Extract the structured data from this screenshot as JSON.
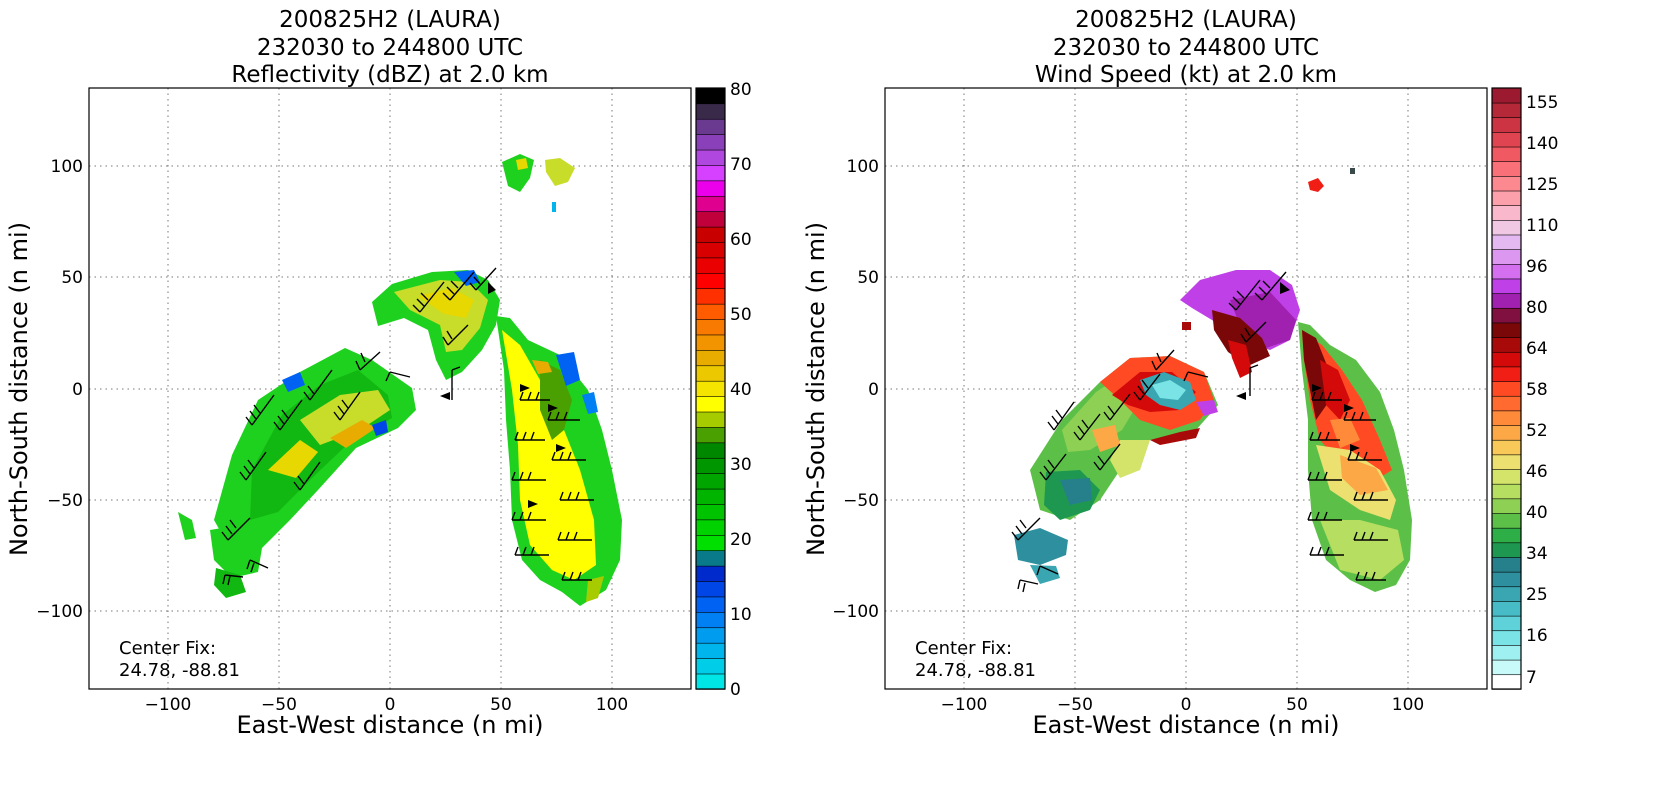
{
  "chart_data": [
    {
      "type": "heatmap",
      "title": [
        "200825H2 (LAURA)",
        "232030 to 244800 UTC",
        "Reflectivity (dBZ) at 2.0 km"
      ],
      "xlabel": "East-West distance (n mi)",
      "ylabel": "North-South distance (n mi)",
      "xlim": [
        -135,
        135
      ],
      "ylim": [
        -135,
        135
      ],
      "xticks": [
        -100,
        -50,
        0,
        50,
        100
      ],
      "yticks": [
        -100,
        -50,
        0,
        50,
        100
      ],
      "xtick_labels": [
        "−100",
        "−50",
        "0",
        "50",
        "100"
      ],
      "ytick_labels": [
        "−100",
        "−50",
        "0",
        "50",
        "100"
      ],
      "grid": true,
      "annotation": [
        "Center Fix:",
        "24.78, -88.81"
      ],
      "colorbar": {
        "range": [
          0,
          80
        ],
        "ticks": [
          "0",
          "10",
          "20",
          "30",
          "40",
          "50",
          "60",
          "70",
          "80"
        ],
        "colors": [
          "#00e5e5",
          "#00cde8",
          "#00b4ec",
          "#009cef",
          "#0080f2",
          "#0062f2",
          "#0045e6",
          "#002acc",
          "#087a8a",
          "#00e000",
          "#00d200",
          "#00c300",
          "#00b400",
          "#00a500",
          "#009600",
          "#008700",
          "#4aa000",
          "#a6cc00",
          "#ffff00",
          "#f4e400",
          "#ebc800",
          "#e8ac00",
          "#f29400",
          "#f87a00",
          "#ff5c00",
          "#ff3000",
          "#ff0000",
          "#ea0000",
          "#d80000",
          "#c80000",
          "#c0003a",
          "#e00090",
          "#ec00ec",
          "#d640ff",
          "#b048e0",
          "#8a40b8",
          "#6a3a90",
          "#3a2a4a",
          "#000000"
        ]
      }
    },
    {
      "type": "heatmap",
      "title": [
        "200825H2 (LAURA)",
        "232030 to 244800 UTC",
        "Wind Speed (kt) at 2.0 km"
      ],
      "xlabel": "East-West distance (n mi)",
      "ylabel": "North-South distance (n mi)",
      "xlim": [
        -135,
        135
      ],
      "ylim": [
        -135,
        135
      ],
      "xticks": [
        -100,
        -50,
        0,
        50,
        100
      ],
      "yticks": [
        -100,
        -50,
        0,
        50,
        100
      ],
      "xtick_labels": [
        "−100",
        "−50",
        "0",
        "50",
        "100"
      ],
      "ytick_labels": [
        "−100",
        "−50",
        "0",
        "50",
        "100"
      ],
      "grid": true,
      "annotation": [
        "Center Fix:",
        "24.78, -88.81"
      ],
      "colorbar": {
        "ticks": [
          "7",
          "16",
          "25",
          "34",
          "40",
          "46",
          "52",
          "58",
          "64",
          "80",
          "96",
          "110",
          "125",
          "140",
          "155"
        ],
        "colors": [
          "#ffffff",
          "#c8fafa",
          "#9ff0f0",
          "#7ae3e6",
          "#5ed2d8",
          "#48bcc6",
          "#3aa6b2",
          "#2e909e",
          "#26808c",
          "#1e9850",
          "#2eae46",
          "#5cc048",
          "#8ed054",
          "#b6de60",
          "#d4e46a",
          "#ece070",
          "#f8c858",
          "#fca846",
          "#fe8a3a",
          "#ff6a30",
          "#ff4a24",
          "#f01e14",
          "#d40a0a",
          "#a80a0a",
          "#7a0808",
          "#801040",
          "#a020b0",
          "#c040e8",
          "#d470f0",
          "#dc98f0",
          "#e4b8f0",
          "#f0c8e4",
          "#fab8cc",
          "#fca0ac",
          "#fc8890",
          "#fa7078",
          "#f05862",
          "#e04450",
          "#cc3444",
          "#b42838",
          "#9c1a30"
        ]
      }
    }
  ]
}
